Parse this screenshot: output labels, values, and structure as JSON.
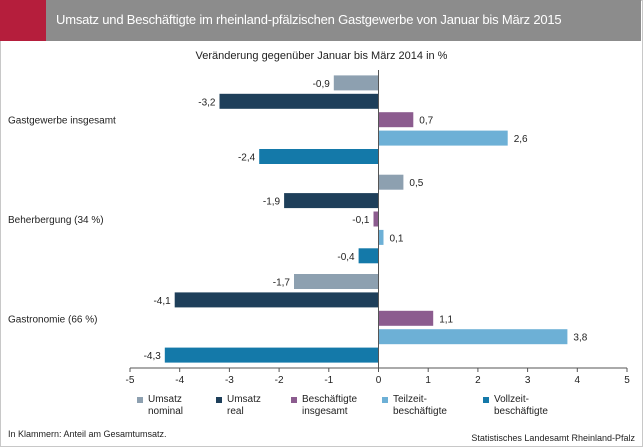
{
  "header": {
    "title": "Umsatz und Beschäftigte im rheinland-pfälzischen Gastgewerbe von Januar bis März 2015",
    "accent_color": "#b51e3c",
    "bar_color": "#8c8c8c"
  },
  "footer": {
    "note": "In Klammern: Anteil am Gesamtumsatz.",
    "source": "Statistisches Landesamt Rheinland-Pfalz"
  },
  "chart_data": {
    "type": "bar",
    "orientation": "horizontal",
    "subtitle": "Veränderung gegenüber Januar bis März 2014 in %",
    "categories": [
      "Gastgewerbe insgesamt",
      "Beherbergung (34 %)",
      "Gastronomie (66 %)"
    ],
    "series": [
      {
        "name": "Umsatz\nnominal",
        "color": "#8da0b0",
        "values": [
          -0.9,
          0.5,
          -1.7
        ],
        "labels": [
          "-0,9",
          "0,5",
          "-1,7"
        ]
      },
      {
        "name": "Umsatz\nreal",
        "color": "#1e3f5a",
        "values": [
          -3.2,
          -1.9,
          -4.1
        ],
        "labels": [
          "-3,2",
          "-1,9",
          "-4,1"
        ]
      },
      {
        "name": "Beschäftigte\ninsgesamt",
        "color": "#8c5c8f",
        "values": [
          0.7,
          -0.1,
          1.1
        ],
        "labels": [
          "0,7",
          "-0,1",
          "1,1"
        ]
      },
      {
        "name": "Teilzeit-\nbeschäftigte",
        "color": "#6db0d6",
        "values": [
          2.6,
          0.1,
          3.8
        ],
        "labels": [
          "2,6",
          "0,1",
          "3,8"
        ]
      },
      {
        "name": "Vollzeit-\nbeschäftigte",
        "color": "#1479a9",
        "values": [
          -2.4,
          -0.4,
          -4.3
        ],
        "labels": [
          "-2,4",
          "-0,4",
          "-4,3"
        ]
      }
    ],
    "xlim": [
      -5,
      5
    ],
    "xticks": [
      -5,
      -4,
      -3,
      -2,
      -1,
      0,
      1,
      2,
      3,
      4,
      5
    ],
    "grid": false,
    "legend_position": "bottom"
  }
}
